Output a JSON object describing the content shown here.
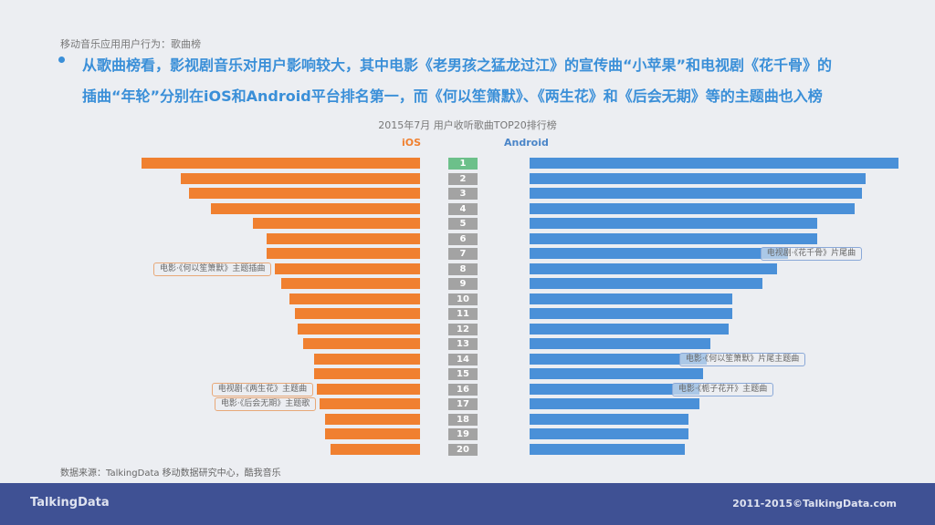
{
  "subtitle": "移动音乐应用用户行为：歌曲榜",
  "headline": [
    "从歌曲榜看，影视剧音乐对用户影响较大，其中电影《老男孩之猛龙过江》的宣传曲“小苹果”和电视剧《花千骨》的",
    "插曲“年轮”分别在iOS和Android平台排名第一，而《何以笙箫默》、《两生花》和《后会无期》等的主题曲也入榜"
  ],
  "source": "数据来源：TalkingData 移动数据研究中心，酷我音乐",
  "footer": {
    "logo": "TalkingData",
    "copyright": "2011-2015©TalkingData.com"
  },
  "chart_data": {
    "type": "bar",
    "title": "2015年7月 用户收听歌曲TOP20排行榜",
    "categories": [
      "1",
      "2",
      "3",
      "4",
      "5",
      "6",
      "7",
      "8",
      "9",
      "10",
      "11",
      "12",
      "13",
      "14",
      "15",
      "16",
      "17",
      "18",
      "19",
      "20"
    ],
    "series": [
      {
        "name": "iOS",
        "color": "#f08030",
        "values": [
          100,
          86,
          83,
          75,
          60,
          55,
          55,
          52,
          50,
          47,
          45,
          44,
          42,
          38,
          38,
          37,
          36,
          34,
          34,
          32
        ]
      },
      {
        "name": "Android",
        "color": "#4a90d8",
        "values": [
          100,
          91,
          90,
          88,
          78,
          78,
          70,
          67,
          63,
          55,
          55,
          54,
          49,
          48,
          47,
          46,
          46,
          43,
          43,
          42
        ]
      }
    ],
    "rank_colors": {
      "first": "#6cc08a",
      "other": "#a3a3a3"
    },
    "annotations": [
      {
        "series": "iOS",
        "rank": 8,
        "text": "电影·《何以笙箫默》主题插曲"
      },
      {
        "series": "iOS",
        "rank": 16,
        "text": "电视剧·《两生花》主题曲"
      },
      {
        "series": "iOS",
        "rank": 17,
        "text": "电影·《后会无期》主题歌"
      },
      {
        "series": "Android",
        "rank": 7,
        "text": "电视剧·《花千骨》片尾曲"
      },
      {
        "series": "Android",
        "rank": 14,
        "text": "电影·《何以笙箫默》片尾主题曲"
      },
      {
        "series": "Android",
        "rank": 16,
        "text": "电影·《栀子花开》主题曲"
      }
    ]
  }
}
